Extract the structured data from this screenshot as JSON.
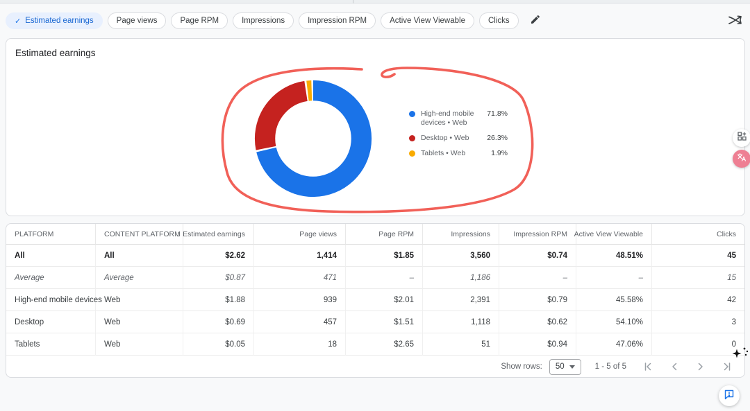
{
  "theme": {
    "accent_blue": "#1a73e8",
    "chip_selected_bg": "#e8f0fe",
    "chip_selected_text": "#1967d2",
    "card_border": "#dadce0",
    "text_primary": "#202124",
    "text_secondary": "#5f6368",
    "page_bg": "#f8f9fa",
    "annotation_red": "#f0524a",
    "translate_badge_pink": "#ee7f93"
  },
  "metric_chips": {
    "check_glyph": "✓",
    "items": [
      {
        "label": "Estimated earnings",
        "selected": true
      },
      {
        "label": "Page views",
        "selected": false
      },
      {
        "label": "Page RPM",
        "selected": false
      },
      {
        "label": "Impressions",
        "selected": false
      },
      {
        "label": "Impression RPM",
        "selected": false
      },
      {
        "label": "Active View Viewable",
        "selected": false
      },
      {
        "label": "Clicks",
        "selected": false
      }
    ]
  },
  "chart_card": {
    "title": "Estimated earnings"
  },
  "chart_data": {
    "type": "pie",
    "donut": true,
    "title": "Estimated earnings",
    "unit": "%",
    "legend_position": "right",
    "series": [
      {
        "label": "High-end mobile devices • Web",
        "value": 71.8,
        "display": "71.8%",
        "color": "#1a73e8"
      },
      {
        "label": "Desktop • Web",
        "value": 26.3,
        "display": "26.3%",
        "color": "#c5221f"
      },
      {
        "label": "Tablets • Web",
        "value": 1.9,
        "display": "1.9%",
        "color": "#f9ab00"
      }
    ],
    "annotation": {
      "type": "hand-drawn-loop",
      "color": "#f0524a"
    }
  },
  "table": {
    "sort_arrow": "↓",
    "sorted_by": "Estimated earnings",
    "headers": [
      "PLATFORM",
      "CONTENT PLATFORM",
      "Estimated earnings",
      "Page views",
      "Page RPM",
      "Impressions",
      "Impression RPM",
      "Active View Viewable",
      "Clicks"
    ],
    "rows": [
      {
        "style": "bold",
        "cells": [
          "All",
          "All",
          "$2.62",
          "1,414",
          "$1.85",
          "3,560",
          "$0.74",
          "48.51%",
          "45"
        ]
      },
      {
        "style": "italic",
        "cells": [
          "Average",
          "Average",
          "$0.87",
          "471",
          "–",
          "1,186",
          "–",
          "–",
          "15"
        ]
      },
      {
        "style": "",
        "cells": [
          "High-end mobile devices",
          "Web",
          "$1.88",
          "939",
          "$2.01",
          "2,391",
          "$0.79",
          "45.58%",
          "42"
        ]
      },
      {
        "style": "",
        "cells": [
          "Desktop",
          "Web",
          "$0.69",
          "457",
          "$1.51",
          "1,118",
          "$0.62",
          "54.10%",
          "3"
        ]
      },
      {
        "style": "",
        "cells": [
          "Tablets",
          "Web",
          "$0.05",
          "18",
          "$2.65",
          "51",
          "$0.94",
          "47.06%",
          "0"
        ]
      }
    ],
    "footer": {
      "show_rows_label": "Show rows:",
      "rows_per_page": "50",
      "range_label": "1 - 5 of 5"
    }
  },
  "icons": {
    "edit": "pencil-icon",
    "chart_toggle": "crossed-trend-arrows-icon",
    "add_widget": "dashboard-add-icon",
    "translate": "translate-icon",
    "cursor": "sparkle-cursor-icon",
    "feedback": "feedback-bubble-icon",
    "pagination": [
      "first-page-icon",
      "previous-page-icon",
      "next-page-icon",
      "last-page-icon"
    ]
  }
}
